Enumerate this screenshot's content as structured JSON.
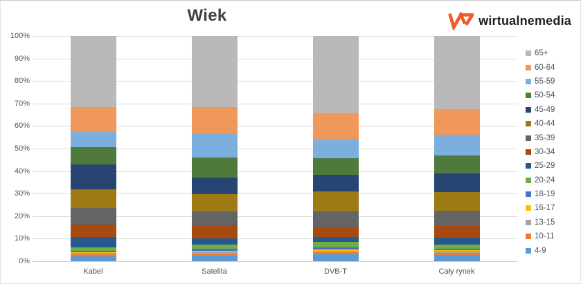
{
  "title": "Wiek",
  "logo": {
    "text": "wirtualnemedia",
    "mark_icon": "wm-monogram",
    "mark_color": "#f05a28"
  },
  "chart_data": {
    "type": "bar",
    "stacked": true,
    "title": "Wiek",
    "categories": [
      "Kabel",
      "Satelita",
      "DVB-T",
      "Cały rynek"
    ],
    "y_axis": {
      "unit": "%",
      "min": 0,
      "max": 100,
      "ticks": [
        "0%",
        "10%",
        "20%",
        "30%",
        "40%",
        "50%",
        "60%",
        "70%",
        "80%",
        "90%",
        "100%"
      ],
      "grid": true
    },
    "legend_position": "right",
    "legend_order_note": "legend lists series from top of stack to bottom",
    "series": [
      {
        "name": "4-9",
        "color": "#5b9bd5",
        "values": [
          2.0,
          2.4,
          3.0,
          2.7
        ]
      },
      {
        "name": "10-11",
        "color": "#ed7d31",
        "values": [
          1.0,
          1.1,
          0.9,
          1.0
        ]
      },
      {
        "name": "13-15",
        "color": "#a5a5a5",
        "values": [
          0.7,
          0.9,
          0.8,
          0.8
        ]
      },
      {
        "name": "16-17",
        "color": "#ffc000",
        "values": [
          0.3,
          0.3,
          0.6,
          0.4
        ]
      },
      {
        "name": "18-19",
        "color": "#4472c4",
        "values": [
          0.5,
          0.8,
          0.7,
          0.6
        ]
      },
      {
        "name": "20-24",
        "color": "#70ad47",
        "values": [
          1.5,
          2.0,
          2.6,
          2.0
        ]
      },
      {
        "name": "25-29",
        "color": "#27598c",
        "values": [
          4.8,
          2.6,
          2.3,
          2.9
        ]
      },
      {
        "name": "30-34",
        "color": "#a74a10",
        "values": [
          5.4,
          5.9,
          4.3,
          5.3
        ]
      },
      {
        "name": "35-39",
        "color": "#646464",
        "values": [
          7.5,
          6.2,
          7.0,
          6.8
        ]
      },
      {
        "name": "40-44",
        "color": "#9d7a13",
        "values": [
          8.2,
          7.6,
          8.7,
          8.2
        ]
      },
      {
        "name": "45-49",
        "color": "#274472",
        "values": [
          11.0,
          7.2,
          7.5,
          8.4
        ]
      },
      {
        "name": "50-54",
        "color": "#4e7a3c",
        "values": [
          7.7,
          9.0,
          7.2,
          8.0
        ]
      },
      {
        "name": "55-59",
        "color": "#7cafdd",
        "values": [
          7.2,
          10.8,
          8.4,
          9.2
        ]
      },
      {
        "name": "60-64",
        "color": "#f0975a",
        "values": [
          10.5,
          11.8,
          11.8,
          11.2
        ]
      },
      {
        "name": "65+",
        "color": "#b9b9b9",
        "values": [
          31.7,
          31.4,
          34.2,
          32.5
        ]
      }
    ]
  }
}
